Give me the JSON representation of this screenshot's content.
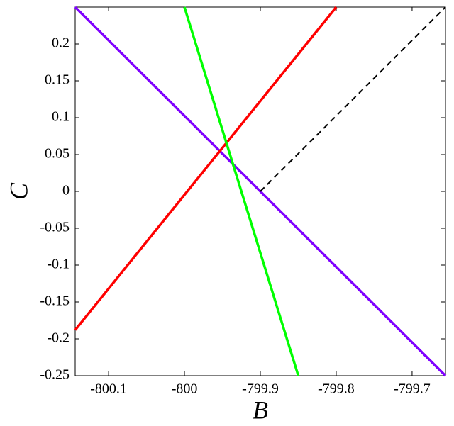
{
  "chart_data": {
    "type": "line",
    "x_label": "B",
    "y_label": "C",
    "xlim": [
      -800.144,
      -799.656
    ],
    "ylim": [
      -0.25,
      0.25
    ],
    "xticks": [
      -800.1,
      -800,
      -799.9,
      -799.8,
      -799.7
    ],
    "yticks": [
      -0.25,
      -0.2,
      -0.15,
      -0.1,
      -0.05,
      0,
      0.05,
      0.1,
      0.15,
      0.2
    ],
    "series": [
      {
        "color": "#7f00ff",
        "linestyle": "solid",
        "x": [
          -800.144,
          -799.656
        ],
        "values": [
          0.25,
          -0.25
        ]
      },
      {
        "color": "#ff0000",
        "linestyle": "solid",
        "x": [
          -800.144,
          -799.8
        ],
        "values": [
          -0.188,
          0.25
        ]
      },
      {
        "color": "#00ff00",
        "linestyle": "solid",
        "x": [
          -800,
          -799.85
        ],
        "values": [
          0.25,
          -0.25
        ]
      },
      {
        "color": "#000000",
        "linestyle": "dashed",
        "x": [
          -799.9,
          -799.656
        ],
        "values": [
          0,
          0.25
        ]
      }
    ]
  }
}
